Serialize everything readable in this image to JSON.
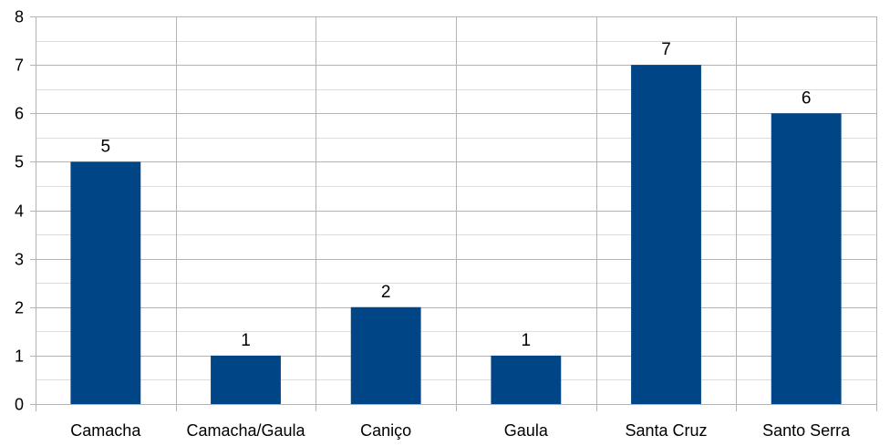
{
  "chart_data": {
    "type": "bar",
    "categories": [
      "Camacha",
      "Camacha/Gaula",
      "Caniço",
      "Gaula",
      "Santa Cruz",
      "Santo Serra"
    ],
    "values": [
      5,
      1,
      2,
      1,
      7,
      6
    ],
    "data_labels": [
      "5",
      "1",
      "2",
      "1",
      "7",
      "6"
    ],
    "yticks": [
      "0",
      "1",
      "2",
      "3",
      "4",
      "5",
      "6",
      "7",
      "8"
    ],
    "title": "",
    "xlabel": "",
    "ylabel": "",
    "ylim": [
      0,
      8
    ],
    "grid": true,
    "minor_grid": true,
    "legend": "none",
    "bar_color": "#004586"
  }
}
